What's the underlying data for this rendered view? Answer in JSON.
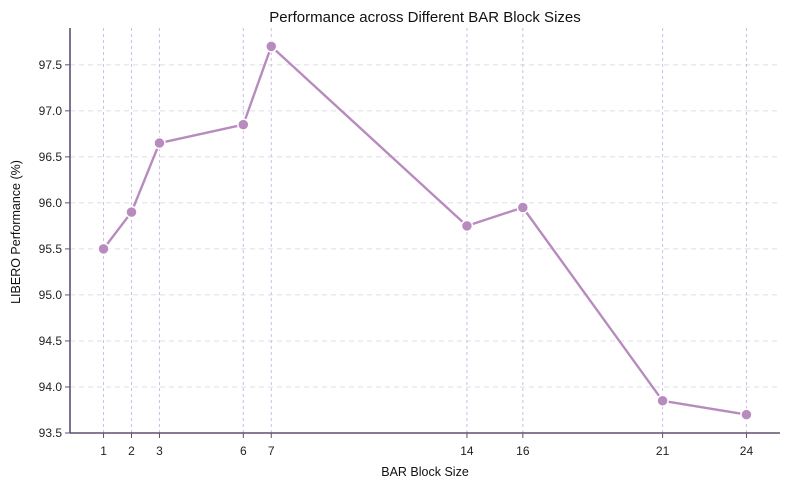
{
  "chart_data": {
    "type": "line",
    "title": "Performance across Different BAR Block Sizes",
    "xlabel": "BAR Block Size",
    "ylabel": "LIBERO Performance (%)",
    "x": [
      1,
      2,
      3,
      6,
      7,
      14,
      16,
      21,
      24
    ],
    "series": [
      {
        "values": [
          95.5,
          95.9,
          96.65,
          96.85,
          97.7,
          95.75,
          95.95,
          93.85,
          93.7
        ]
      }
    ],
    "xticks": [
      "1",
      "2",
      "3",
      "6",
      "7",
      "14",
      "16",
      "21",
      "24"
    ],
    "yticks": [
      "93.5",
      "94.0",
      "94.5",
      "95.0",
      "95.5",
      "96.0",
      "96.5",
      "97.0",
      "97.5"
    ],
    "xlim": [
      -0.2,
      25.2
    ],
    "ylim": [
      93.5,
      97.9
    ],
    "grid": true,
    "colors": {
      "line": "#b88bbf",
      "marker": "#b88bbf",
      "marker_edge": "#ffffff"
    }
  }
}
